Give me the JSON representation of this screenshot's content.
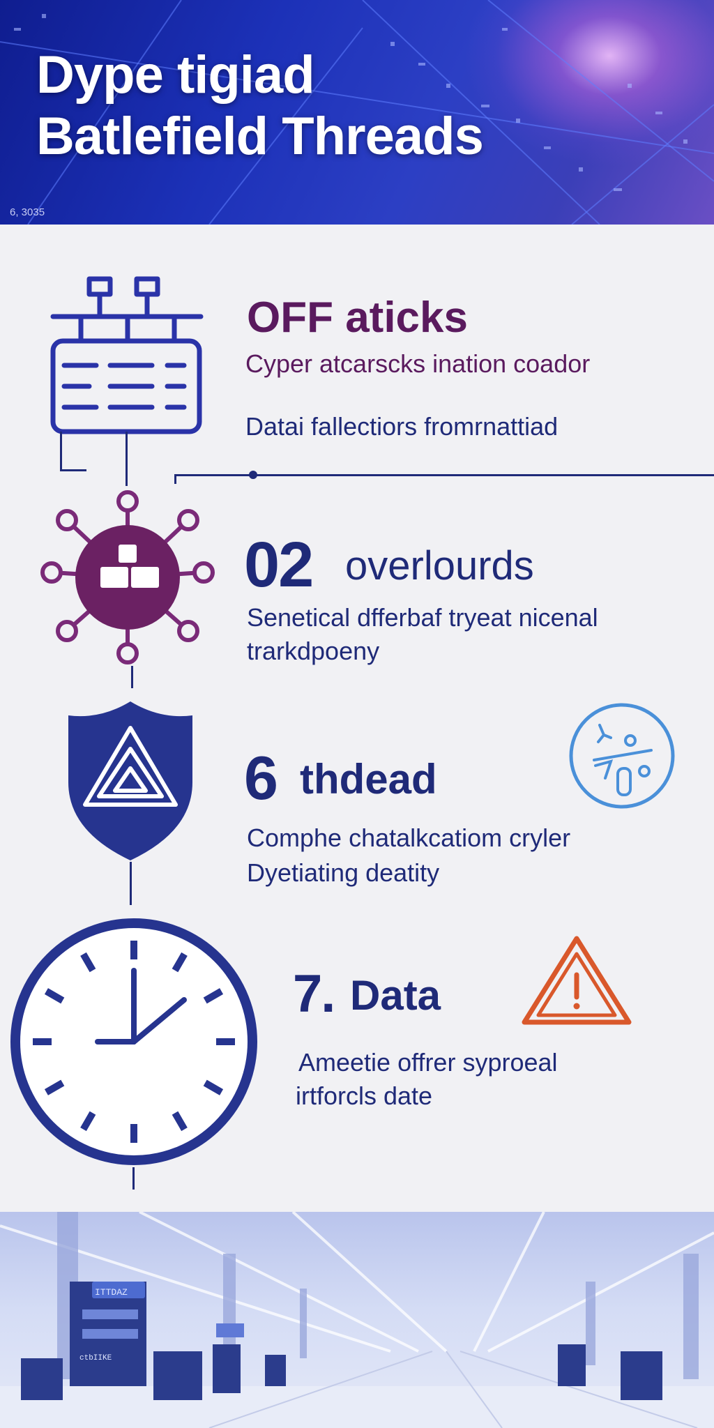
{
  "header": {
    "title_line1": "Dype tigiad",
    "title_line2": "Batlefield Threads",
    "date": "6, 3035"
  },
  "sections": [
    {
      "heading": "OFF aticks",
      "line1": "Cyper atcarscks ination coador",
      "line2": "Datai fallectiors fromrnattiad",
      "icon": "server-network-icon"
    },
    {
      "number": "02",
      "heading": "overlourds",
      "line1": "Senetical dfferbaf tryeat nicenal",
      "line2": "trarkdpoeny",
      "icon": "virus-network-icon"
    },
    {
      "number": "6",
      "heading": "thdead",
      "line1": "Comphe chatalkcatiom cryler",
      "line2": "Dyetiating  deatity",
      "icon": "shield-warning-icon",
      "side_icon": "tools-circle-icon"
    },
    {
      "number": "7.",
      "heading": "Data",
      "line1": "Ameetie offrer syproeal",
      "line2": "irtforcls date",
      "icon": "clock-icon",
      "side_icon": "warning-triangle-icon"
    }
  ],
  "footer": {
    "sign_text": "ITTDAZ",
    "screen_text": "ctbIIKE"
  },
  "colors": {
    "navy": "#1f2a78",
    "purple": "#5a1a5e",
    "accent_blue": "#4a90d9",
    "warning_orange": "#d9582b"
  }
}
